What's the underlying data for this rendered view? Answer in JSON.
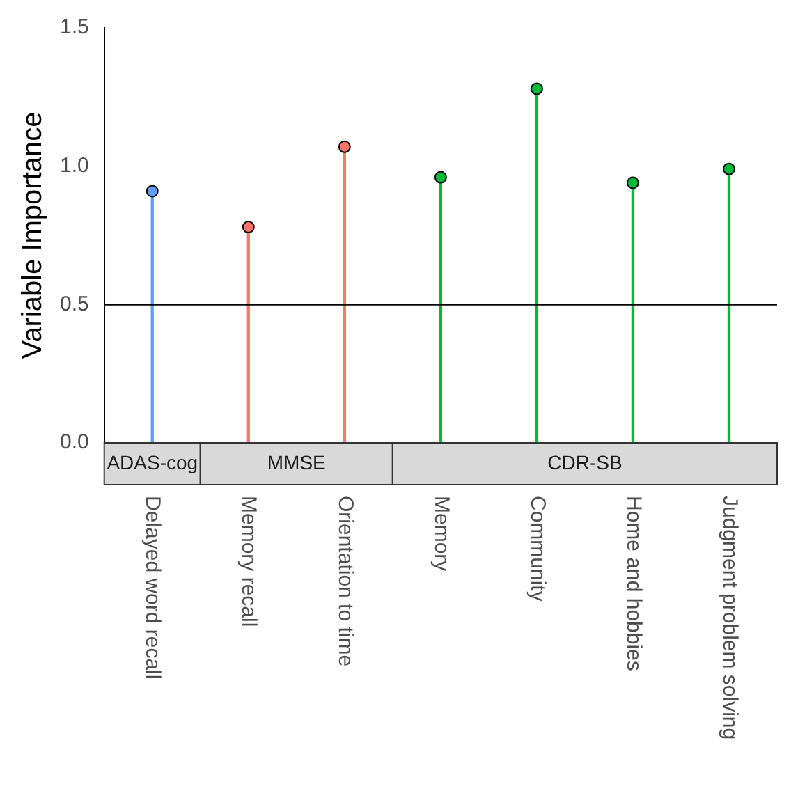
{
  "chart_data": {
    "type": "lollipop",
    "ylabel": "Variable Importance",
    "categories": [
      "Delayed word recall",
      "Memory recall",
      "Orientation to time",
      "Memory",
      "Community",
      "Home and hobbies",
      "Judgment problem solving"
    ],
    "series": [
      {
        "color": "#619cff",
        "values": [
          0.91,
          null,
          null,
          null,
          null,
          null,
          null
        ]
      },
      {
        "color": "#f8766d",
        "values": [
          null,
          0.78,
          1.07,
          null,
          null,
          null,
          null
        ]
      },
      {
        "color": "#00ba38",
        "values": [
          null,
          null,
          null,
          0.96,
          1.28,
          0.94,
          0.99
        ]
      }
    ],
    "annotations": [
      "ADAS-cog",
      "MMSE",
      "CDR-SB"
    ],
    "ylim": [
      0,
      1.5
    ],
    "yticks": [
      {
        "value": 0,
        "label": "0.0"
      },
      {
        "value": 0.5,
        "label": "0.5"
      },
      {
        "value": 1,
        "label": "1.0"
      },
      {
        "value": 1.5,
        "label": "1.5"
      }
    ],
    "ref_lines": [
      {
        "axis": "y",
        "value": 0.5,
        "color": "#000000"
      }
    ],
    "marker": "circle",
    "grid": false,
    "legend": false
  }
}
